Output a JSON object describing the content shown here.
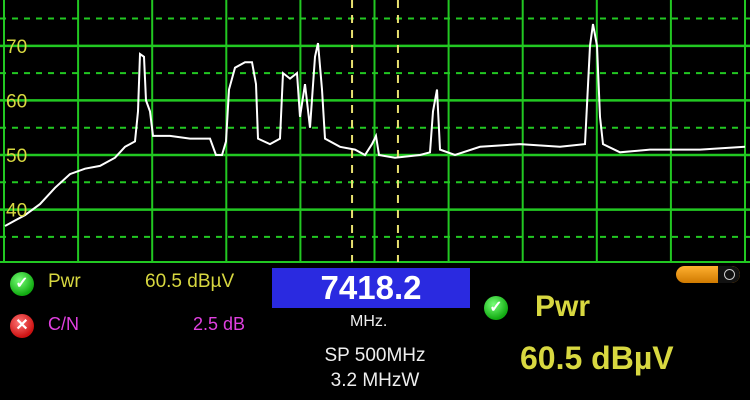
{
  "chart_data": {
    "type": "line",
    "title": "",
    "xlabel": "",
    "ylabel": "",
    "ylim": [
      30.4,
      78.4
    ],
    "xlim": [
      7168.2,
      7668.2
    ],
    "y_ticks": [
      40,
      50,
      60,
      70,
      80
    ],
    "grid": true,
    "grid_color": "#22c822",
    "trace_color": "#ffffff",
    "markers": [
      7402.9,
      7433.5
    ],
    "marker_color": "#e8e070",
    "series": [
      {
        "x": [
          7171.5,
          7178.2,
          7184.9,
          7194.9,
          7204.9,
          7214.9,
          7224.9,
          7234.9,
          7244.9,
          7251.5,
          7258.2,
          7260.2,
          7261.5,
          7264.2,
          7265.5,
          7268.2,
          7270.2,
          7281.5,
          7294.9,
          7308.2,
          7312.2,
          7316.2,
          7318.9,
          7320.9,
          7324.9,
          7331.5,
          7336.2,
          7338.9,
          7340.2,
          7348.2,
          7354.9,
          7356.9,
          7361.5,
          7366.2,
          7368.2,
          7371.5,
          7374.9,
          7378.2,
          7380.2,
          7382.9,
          7384.9,
          7394.9,
          7404.9,
          7411.5,
          7416.2,
          7418.9,
          7420.9,
          7431.5,
          7448.2,
          7454.9,
          7456.9,
          7459.5,
          7461.5,
          7471.5,
          7488.2,
          7514.9,
          7541.5,
          7558.2,
          7561.5,
          7563.5,
          7566.2,
          7568.2,
          7570.2,
          7581.5,
          7601.5,
          7634.9,
          7664.9
        ],
        "y": [
          37,
          38,
          39,
          41,
          44,
          46.5,
          47.5,
          48,
          49.5,
          51.5,
          52.5,
          58,
          68.5,
          68,
          60,
          58,
          53.5,
          53.5,
          53,
          53,
          50,
          50,
          52.5,
          62,
          66,
          67,
          67,
          63,
          53,
          52,
          53,
          65,
          64,
          65,
          57,
          63,
          55,
          68,
          70.5,
          62,
          53,
          51.5,
          51,
          50,
          52,
          53.5,
          50,
          49.5,
          50,
          50.5,
          58,
          62,
          51,
          50,
          51.5,
          52,
          51.5,
          52,
          70,
          74,
          70,
          57,
          52,
          50.5,
          51,
          51,
          51.5
        ]
      }
    ]
  },
  "readout": {
    "pwr_label": "Pwr",
    "pwr_value": "60.5 dBµV",
    "pwr_status": "ok",
    "cn_label": "C/N",
    "cn_value": "2.5 dB",
    "cn_status": "fail",
    "frequency": "7418.2",
    "frequency_unit": "MHz.",
    "span": "SP 500MHz",
    "rbw": "3.2 MHzW",
    "big_label": "Pwr",
    "big_value": "60.5 dBµV",
    "battery_icon": "battery-icon"
  },
  "colors": {
    "yellow": "#d8d840",
    "magenta": "#e040e0",
    "freq_box": "#2a2ae0"
  }
}
